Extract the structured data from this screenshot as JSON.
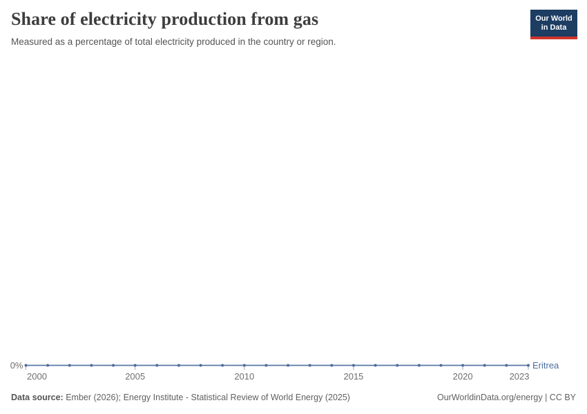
{
  "header": {
    "title": "Share of electricity production from gas",
    "subtitle": "Measured as a percentage of total electricity produced in the country or region.",
    "logo": {
      "line1": "Our World",
      "line2": "in Data"
    }
  },
  "colors": {
    "series_blue": "#4c6a9c",
    "logo_navy": "#1d3d63",
    "logo_red": "#d0342c",
    "axis_text": "#6e6e6e",
    "tick_mark": "#a3aab4"
  },
  "chart_data": {
    "type": "line",
    "title": "Share of electricity production from gas",
    "subtitle": "Measured as a percentage of total electricity produced in the country or region.",
    "x": [
      2000,
      2001,
      2002,
      2003,
      2004,
      2005,
      2006,
      2007,
      2008,
      2009,
      2010,
      2011,
      2012,
      2013,
      2014,
      2015,
      2016,
      2017,
      2018,
      2019,
      2020,
      2021,
      2022,
      2023
    ],
    "series": [
      {
        "name": "Eritrea",
        "color": "#4c6a9c",
        "values": [
          0,
          0,
          0,
          0,
          0,
          0,
          0,
          0,
          0,
          0,
          0,
          0,
          0,
          0,
          0,
          0,
          0,
          0,
          0,
          0,
          0,
          0,
          0,
          0
        ]
      }
    ],
    "x_ticks": [
      2000,
      2005,
      2010,
      2015,
      2020,
      2023
    ],
    "x_tick_labels": [
      "2000",
      "2005",
      "2010",
      "2015",
      "2020",
      "2023"
    ],
    "y_ticks": [
      0
    ],
    "y_tick_labels": [
      "0%"
    ],
    "unit": "%",
    "xlabel": "",
    "ylabel": "",
    "grid": false,
    "legend_position": "end-of-line",
    "marker": "dot-per-year"
  },
  "footer": {
    "data_source_label": "Data source:",
    "data_source_text": " Ember (2026); Energy Institute - Statistical Review of World Energy (2025)",
    "license_text": "OurWorldinData.org/energy | CC BY"
  }
}
